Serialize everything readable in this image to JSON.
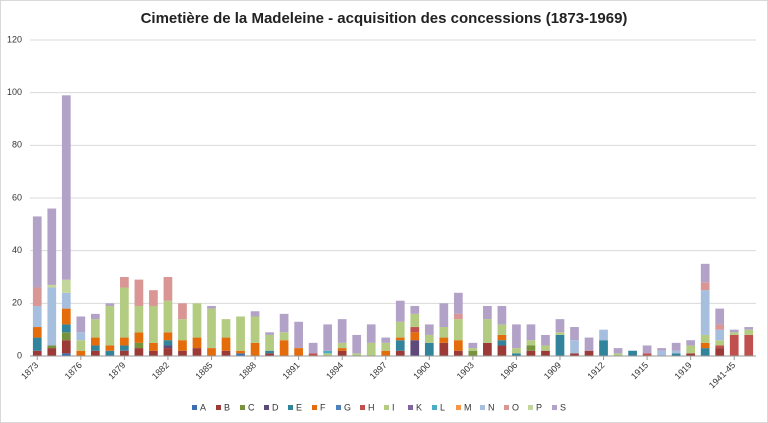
{
  "chart_data": {
    "type": "stacked-bar",
    "title": "Cimetière de la Madeleine - acquisition des concessions (1873-1969)",
    "categories": [
      "1873",
      null,
      null,
      "1876",
      null,
      null,
      "1879",
      null,
      null,
      "1882",
      null,
      null,
      "1885",
      null,
      null,
      "1888",
      null,
      null,
      "1891",
      null,
      null,
      "1894",
      null,
      null,
      "1897",
      null,
      null,
      "1900",
      null,
      null,
      "1903",
      null,
      null,
      "1906",
      null,
      null,
      "1909",
      null,
      null,
      "1912",
      null,
      null,
      "1915",
      null,
      null,
      "1919",
      null,
      null,
      "1941-45",
      null
    ],
    "ylim": [
      0,
      120
    ],
    "yticks": [
      0,
      20,
      40,
      60,
      80,
      100,
      120
    ],
    "grid": true,
    "legend": "bottom",
    "series": [
      {
        "name": "A",
        "color": "#3c6fb0",
        "values": [
          0,
          0,
          1,
          0,
          0,
          0,
          0,
          0,
          0,
          0,
          0,
          0,
          0,
          0,
          1,
          0,
          0,
          0,
          0,
          0,
          0,
          0,
          0,
          0,
          0,
          0,
          0,
          0,
          0,
          0,
          0,
          0,
          0,
          0,
          0,
          0,
          0,
          0,
          0,
          0,
          0,
          0,
          0,
          0,
          0,
          0,
          0,
          0,
          0,
          0
        ]
      },
      {
        "name": "B",
        "color": "#9b3a37",
        "values": [
          2,
          3,
          5,
          0,
          2,
          0,
          2,
          3,
          2,
          3,
          2,
          3,
          0,
          2,
          0,
          0,
          1,
          0,
          0,
          0,
          0,
          2,
          0,
          0,
          0,
          2,
          0,
          0,
          5,
          2,
          0,
          5,
          4,
          0,
          2,
          2,
          0,
          1,
          2,
          0,
          0,
          0,
          0,
          0,
          0,
          1,
          0,
          3,
          0,
          0
        ]
      },
      {
        "name": "C",
        "color": "#76923c",
        "values": [
          0,
          1,
          3,
          0,
          0,
          0,
          0,
          2,
          0,
          0,
          0,
          0,
          0,
          0,
          0,
          0,
          0,
          0,
          0,
          0,
          0,
          0,
          0,
          0,
          0,
          0,
          0,
          0,
          0,
          0,
          2,
          0,
          0,
          0,
          2,
          0,
          0,
          0,
          0,
          0,
          0,
          0,
          0,
          0,
          0,
          0,
          0,
          0,
          0,
          0
        ]
      },
      {
        "name": "D",
        "color": "#5f497a",
        "values": [
          0,
          0,
          0,
          0,
          0,
          0,
          0,
          0,
          0,
          1,
          0,
          0,
          0,
          0,
          0,
          0,
          0,
          0,
          0,
          0,
          0,
          0,
          0,
          0,
          0,
          0,
          6,
          0,
          0,
          0,
          0,
          0,
          0,
          0,
          0,
          0,
          0,
          0,
          0,
          0,
          0,
          0,
          0,
          0,
          0,
          0,
          0,
          0,
          0,
          0
        ]
      },
      {
        "name": "E",
        "color": "#31849b",
        "values": [
          5,
          0,
          3,
          0,
          2,
          2,
          2,
          0,
          0,
          2,
          0,
          0,
          0,
          0,
          0,
          0,
          1,
          0,
          0,
          0,
          0,
          0,
          0,
          0,
          0,
          4,
          0,
          5,
          0,
          0,
          0,
          0,
          2,
          1,
          0,
          0,
          8,
          0,
          0,
          6,
          0,
          2,
          0,
          0,
          1,
          0,
          3,
          0,
          0,
          0
        ]
      },
      {
        "name": "F",
        "color": "#e46c0a",
        "values": [
          4,
          0,
          6,
          2,
          3,
          2,
          3,
          4,
          3,
          3,
          4,
          4,
          3,
          5,
          1,
          5,
          0,
          6,
          3,
          0,
          0,
          1,
          0,
          0,
          2,
          1,
          3,
          0,
          2,
          4,
          0,
          0,
          2,
          0,
          0,
          0,
          0,
          0,
          0,
          0,
          0,
          0,
          0,
          0,
          0,
          0,
          2,
          0,
          0,
          0
        ]
      },
      {
        "name": "G",
        "color": "#4f81bd",
        "values": [
          0,
          0,
          0,
          0,
          0,
          0,
          0,
          0,
          0,
          0,
          0,
          0,
          0,
          0,
          0,
          0,
          0,
          0,
          0,
          0,
          0,
          0,
          0,
          0,
          0,
          0,
          0,
          0,
          0,
          0,
          0,
          0,
          0,
          0,
          0,
          0,
          0,
          0,
          0,
          0,
          0,
          0,
          0,
          0,
          0,
          0,
          0,
          0,
          0,
          0
        ]
      },
      {
        "name": "H",
        "color": "#c0504d",
        "values": [
          0,
          0,
          0,
          0,
          0,
          0,
          0,
          0,
          0,
          0,
          0,
          0,
          0,
          0,
          0,
          0,
          0,
          0,
          0,
          1,
          0,
          0,
          0,
          0,
          0,
          0,
          2,
          0,
          0,
          0,
          0,
          0,
          0,
          0,
          0,
          0,
          0,
          0,
          0,
          0,
          0,
          0,
          1,
          0,
          0,
          0,
          0,
          1,
          8,
          8
        ]
      },
      {
        "name": "I",
        "color": "#b3cc82",
        "values": [
          0,
          0,
          0,
          4,
          7,
          15,
          19,
          10,
          14,
          12,
          8,
          13,
          15,
          7,
          13,
          10,
          6,
          3,
          0,
          0,
          1,
          2,
          1,
          5,
          3,
          6,
          5,
          3,
          4,
          8,
          1,
          9,
          4,
          2,
          2,
          2,
          1,
          0,
          0,
          0,
          1,
          0,
          0,
          0,
          0,
          3,
          3,
          2,
          1,
          2
        ]
      },
      {
        "name": "K",
        "color": "#8064a2",
        "values": [
          0,
          0,
          0,
          0,
          0,
          0,
          0,
          0,
          0,
          0,
          0,
          0,
          0,
          0,
          0,
          0,
          0,
          0,
          0,
          0,
          0,
          0,
          0,
          0,
          0,
          0,
          0,
          0,
          0,
          0,
          0,
          0,
          0,
          0,
          0,
          0,
          0,
          0,
          0,
          0,
          0,
          0,
          0,
          0,
          0,
          0,
          0,
          0,
          0,
          0
        ]
      },
      {
        "name": "L",
        "color": "#4bacc6",
        "values": [
          0,
          0,
          0,
          0,
          0,
          0,
          0,
          0,
          0,
          0,
          0,
          0,
          0,
          0,
          0,
          0,
          0,
          0,
          0,
          0,
          1,
          0,
          0,
          0,
          0,
          0,
          0,
          0,
          0,
          0,
          0,
          0,
          0,
          0,
          0,
          0,
          0,
          0,
          0,
          0,
          0,
          0,
          0,
          0,
          0,
          0,
          0,
          0,
          0,
          0
        ]
      },
      {
        "name": "M",
        "color": "#f79646",
        "values": [
          0,
          0,
          0,
          0,
          0,
          0,
          0,
          0,
          0,
          0,
          0,
          0,
          0,
          0,
          0,
          0,
          0,
          0,
          0,
          0,
          0,
          0,
          0,
          0,
          0,
          0,
          0,
          0,
          0,
          0,
          0,
          0,
          0,
          0,
          0,
          0,
          0,
          0,
          0,
          0,
          0,
          0,
          0,
          0,
          0,
          0,
          0,
          0,
          0,
          0
        ]
      },
      {
        "name": "N",
        "color": "#a7bfde",
        "values": [
          8,
          22,
          6,
          3,
          0,
          0,
          0,
          0,
          0,
          0,
          0,
          0,
          0,
          0,
          0,
          0,
          0,
          0,
          0,
          0,
          0,
          0,
          0,
          0,
          0,
          0,
          0,
          0,
          0,
          0,
          0,
          0,
          0,
          0,
          0,
          0,
          0,
          5,
          0,
          4,
          0,
          0,
          0,
          2,
          1,
          0,
          17,
          4,
          0,
          0
        ]
      },
      {
        "name": "O",
        "color": "#d99694",
        "values": [
          7,
          0,
          0,
          0,
          0,
          0,
          4,
          10,
          6,
          9,
          6,
          0,
          0,
          0,
          0,
          0,
          0,
          0,
          0,
          0,
          0,
          0,
          0,
          0,
          0,
          0,
          0,
          0,
          0,
          2,
          0,
          0,
          0,
          0,
          0,
          0,
          0,
          0,
          0,
          0,
          0,
          0,
          0,
          0,
          0,
          0,
          3,
          2,
          0,
          0
        ]
      },
      {
        "name": "P",
        "color": "#c3d69b",
        "values": [
          0,
          1,
          5,
          0,
          0,
          0,
          0,
          0,
          0,
          0,
          0,
          0,
          0,
          0,
          0,
          0,
          0,
          0,
          0,
          0,
          0,
          0,
          0,
          0,
          0,
          0,
          0,
          0,
          0,
          0,
          0,
          0,
          0,
          0,
          0,
          0,
          0,
          0,
          0,
          0,
          0,
          0,
          0,
          0,
          0,
          0,
          0,
          0,
          0,
          0
        ]
      },
      {
        "name": "S",
        "color": "#b3a2c7",
        "values": [
          27,
          29,
          70,
          6,
          2,
          1,
          0,
          0,
          0,
          0,
          0,
          0,
          1,
          0,
          0,
          2,
          1,
          7,
          10,
          4,
          10,
          9,
          7,
          7,
          2,
          8,
          3,
          4,
          9,
          8,
          2,
          5,
          7,
          9,
          6,
          4,
          5,
          5,
          5,
          0,
          2,
          0,
          3,
          1,
          3,
          2,
          7,
          6,
          1,
          1
        ]
      }
    ]
  }
}
